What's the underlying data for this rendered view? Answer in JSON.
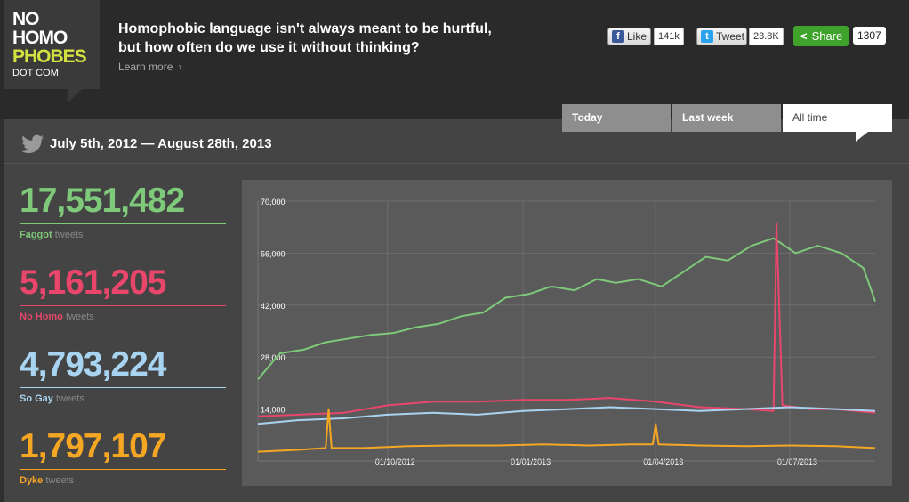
{
  "logo": {
    "line1": "NO",
    "line2": "HOMO",
    "line3": "PHOBES",
    "line4": "DOT COM",
    "accent": "#d4e23f"
  },
  "header": {
    "headline_line1": "Homophobic language isn't always meant to be hurtful,",
    "headline_line2": "but how often do we use it without thinking?",
    "learn_more": "Learn more",
    "learn_more_chevron": "›"
  },
  "social": {
    "like_label": "Like",
    "like_count": "141k",
    "tweet_label": "Tweet",
    "tweet_count": "23.8K",
    "share_label": "Share",
    "share_count": "1307",
    "facebook_icon_glyph": "f",
    "twitter_icon_glyph": "t",
    "share_icon_glyph": "<"
  },
  "tabs": [
    {
      "label": "Today",
      "active": false
    },
    {
      "label": "Last week",
      "active": false
    },
    {
      "label": "All time",
      "active": true
    }
  ],
  "date_range": "July 5th, 2012 — August 28th, 2013",
  "stats": [
    {
      "number": "17,551,482",
      "name": "Faggot",
      "suffix": "tweets",
      "color": "#7ec97a"
    },
    {
      "number": "5,161,205",
      "name": "No Homo",
      "suffix": "tweets",
      "color": "#e8466b"
    },
    {
      "number": "4,793,224",
      "name": "So Gay",
      "suffix": "tweets",
      "color": "#a8d4f2"
    },
    {
      "number": "1,797,107",
      "name": "Dyke",
      "suffix": "tweets",
      "color": "#f5a623"
    }
  ],
  "chart_data": {
    "type": "line",
    "ylim": [
      0,
      70000
    ],
    "y_ticks": [
      14000,
      28000,
      42000,
      56000,
      70000
    ],
    "y_tick_labels": [
      "14,000",
      "28,000",
      "42,000",
      "56,000",
      "70,000"
    ],
    "x_tick_labels": [
      "01/10/2012",
      "01/01/2013",
      "01/04/2013",
      "01/07/2013"
    ],
    "x_tick_dates": [
      "2012-10-01",
      "2013-01-01",
      "2013-04-01",
      "2013-07-01"
    ],
    "x_range": [
      "2012-07-05",
      "2013-08-28"
    ],
    "grid": true,
    "series": [
      {
        "name": "Faggot",
        "color": "#7ec97a",
        "x": [
          "2012-07-05",
          "2012-07-20",
          "2012-08-05",
          "2012-08-20",
          "2012-09-05",
          "2012-09-20",
          "2012-10-05",
          "2012-10-20",
          "2012-11-05",
          "2012-11-20",
          "2012-12-05",
          "2012-12-20",
          "2013-01-05",
          "2013-01-20",
          "2013-02-05",
          "2013-02-20",
          "2013-03-05",
          "2013-03-20",
          "2013-04-05",
          "2013-04-20",
          "2013-05-05",
          "2013-05-20",
          "2013-06-05",
          "2013-06-20",
          "2013-07-05",
          "2013-07-20",
          "2013-08-05",
          "2013-08-20",
          "2013-08-28"
        ],
        "values": [
          22000,
          29000,
          30000,
          32000,
          33000,
          34000,
          34500,
          36000,
          37000,
          39000,
          40000,
          44000,
          45000,
          47000,
          46000,
          49000,
          48000,
          49000,
          47000,
          51000,
          55000,
          54000,
          58000,
          60000,
          56000,
          58000,
          56000,
          52000,
          43000
        ]
      },
      {
        "name": "No Homo",
        "color": "#e8466b",
        "x": [
          "2012-07-05",
          "2012-08-01",
          "2012-09-01",
          "2012-10-01",
          "2012-11-01",
          "2012-12-01",
          "2013-01-01",
          "2013-02-01",
          "2013-03-01",
          "2013-04-01",
          "2013-05-01",
          "2013-06-01",
          "2013-06-20",
          "2013-06-22",
          "2013-06-26",
          "2013-07-15",
          "2013-08-01",
          "2013-08-28"
        ],
        "values": [
          12000,
          12500,
          13000,
          15000,
          16000,
          16000,
          16500,
          16500,
          17000,
          16000,
          14500,
          14000,
          13500,
          64000,
          15000,
          14000,
          14000,
          13000
        ]
      },
      {
        "name": "So Gay",
        "color": "#a8d4f2",
        "x": [
          "2012-07-05",
          "2012-08-01",
          "2012-09-01",
          "2012-10-01",
          "2012-11-01",
          "2012-12-01",
          "2013-01-01",
          "2013-02-01",
          "2013-03-01",
          "2013-04-01",
          "2013-05-01",
          "2013-06-01",
          "2013-07-01",
          "2013-08-01",
          "2013-08-28"
        ],
        "values": [
          10000,
          11000,
          11500,
          12500,
          13000,
          12500,
          13500,
          14000,
          14500,
          14000,
          13500,
          14000,
          14500,
          14000,
          13500
        ]
      },
      {
        "name": "Dyke",
        "color": "#f5a623",
        "x": [
          "2012-07-05",
          "2012-08-01",
          "2012-08-20",
          "2012-08-22",
          "2012-08-24",
          "2012-09-15",
          "2012-10-15",
          "2012-11-15",
          "2012-12-15",
          "2013-01-15",
          "2013-02-15",
          "2013-03-15",
          "2013-03-30",
          "2013-04-01",
          "2013-04-03",
          "2013-05-01",
          "2013-06-01",
          "2013-07-01",
          "2013-08-01",
          "2013-08-28"
        ],
        "values": [
          2500,
          3000,
          3500,
          14000,
          3500,
          3500,
          4000,
          4200,
          4200,
          4500,
          4200,
          4500,
          4500,
          10000,
          4500,
          4200,
          4000,
          4200,
          4000,
          3500
        ]
      }
    ]
  }
}
